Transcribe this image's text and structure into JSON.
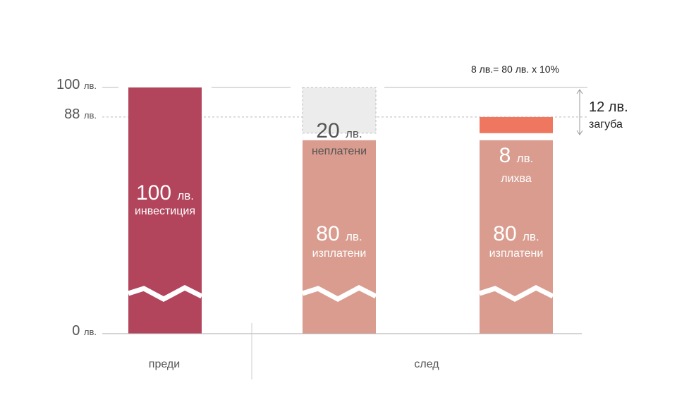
{
  "colors": {
    "investment": "#b2445c",
    "paid": "#d99c8f",
    "unpaid_fill": "#ececec",
    "unpaid_stroke": "#bdbdbd",
    "interest": "#f0775f",
    "axis": "#aaaaaa",
    "text_dark": "#555555"
  },
  "chart_data": {
    "type": "bar",
    "title": "",
    "ylim": [
      0,
      100
    ],
    "y_ticks": [
      {
        "value": 100,
        "num": "100",
        "unit": "лв."
      },
      {
        "value": 88,
        "num": "88",
        "unit": "лв."
      },
      {
        "value": 0,
        "num": "0",
        "unit": "лв."
      }
    ],
    "groups": [
      {
        "label": "преди"
      },
      {
        "label": "след"
      }
    ],
    "bars": [
      {
        "name": "investment",
        "group": "преди",
        "bottom": 0,
        "top": 100,
        "color_key": "investment",
        "value_num": "100",
        "value_unit": "лв.",
        "label": "инвестиция"
      },
      {
        "name": "paid-1",
        "group": "след",
        "bottom": 0,
        "top": 80,
        "color_key": "paid",
        "value_num": "80",
        "value_unit": "лв.",
        "label": "изплатени"
      },
      {
        "name": "unpaid",
        "group": "след",
        "bottom": 80,
        "top": 100,
        "color_key": "unpaid_fill",
        "dashed": true,
        "value_num": "20",
        "value_unit": "лв.",
        "label": "неплатени"
      },
      {
        "name": "paid-2",
        "group": "след",
        "bottom": 0,
        "top": 80,
        "color_key": "paid",
        "value_num": "80",
        "value_unit": "лв.",
        "label": "изплатени"
      },
      {
        "name": "interest",
        "group": "след",
        "bottom": 80,
        "top": 88,
        "color_key": "interest",
        "value_num": "8",
        "value_unit": "лв.",
        "label": "лихва"
      }
    ],
    "annotations": {
      "formula": "8 лв.= 80 лв. x 10%",
      "loss_value": "12 лв.",
      "loss_label": "загуба"
    }
  }
}
